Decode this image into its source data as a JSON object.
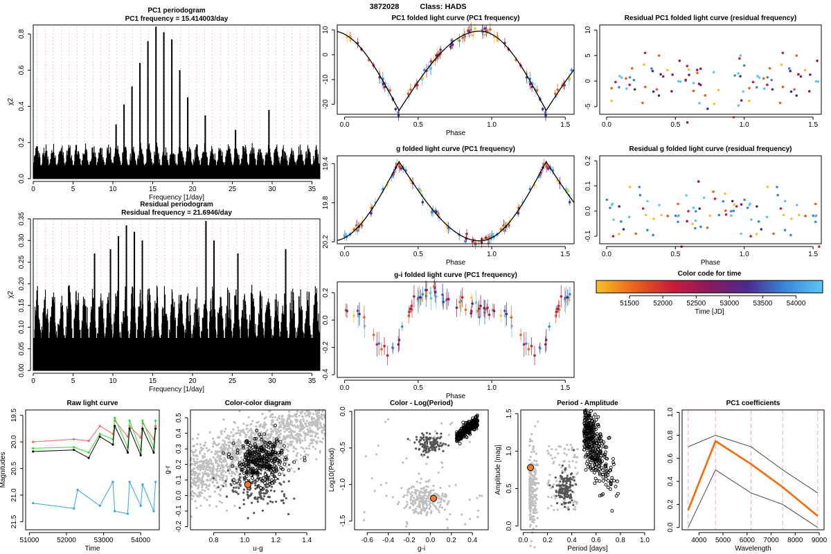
{
  "figure": {
    "object_id": "3872028",
    "class_label": "Class: HADS"
  },
  "chart_data": [
    {
      "id": "pc1_periodogram",
      "type": "line",
      "title": "PC1 periodogram",
      "subtitle": "PC1 frequency = 15.414003/day",
      "xlabel": "Frequency [1/day]",
      "ylabel": "χ2",
      "xlim": [
        0,
        36
      ],
      "ylim": [
        0,
        0.85
      ],
      "xticks": [
        0,
        5,
        10,
        15,
        20,
        25,
        30,
        35
      ],
      "yticks": [
        0.0,
        0.2,
        0.4,
        0.6,
        0.8
      ],
      "peaks": [
        {
          "x": 15.41,
          "y": 0.84
        },
        {
          "x": 16.4,
          "y": 0.81
        },
        {
          "x": 17.4,
          "y": 0.77
        },
        {
          "x": 14.4,
          "y": 0.76
        },
        {
          "x": 13.4,
          "y": 0.64
        },
        {
          "x": 18.4,
          "y": 0.6
        },
        {
          "x": 12.4,
          "y": 0.51
        },
        {
          "x": 11.4,
          "y": 0.41
        },
        {
          "x": 19.4,
          "y": 0.45
        },
        {
          "x": 21.6,
          "y": 0.35
        },
        {
          "x": 29.6,
          "y": 0.38
        },
        {
          "x": 25.4,
          "y": 0.27
        },
        {
          "x": 10.4,
          "y": 0.3
        }
      ],
      "noise_level": 0.2
    },
    {
      "id": "residual_periodogram",
      "type": "line",
      "title": "Residual periodogram",
      "subtitle": "Residual frequency = 21.6946/day",
      "xlabel": "Frequency [1/day]",
      "ylabel": "χ2",
      "xlim": [
        0,
        36
      ],
      "ylim": [
        0,
        0.35
      ],
      "xticks": [
        0,
        5,
        10,
        15,
        20,
        25,
        30,
        35
      ],
      "yticks": [
        0.0,
        0.05,
        0.1,
        0.15,
        0.2,
        0.25,
        0.3,
        0.35
      ],
      "peaks": [
        {
          "x": 21.69,
          "y": 0.345
        },
        {
          "x": 11.7,
          "y": 0.335
        },
        {
          "x": 12.7,
          "y": 0.32
        },
        {
          "x": 10.7,
          "y": 0.31
        },
        {
          "x": 13.7,
          "y": 0.3
        },
        {
          "x": 22.7,
          "y": 0.3
        },
        {
          "x": 9.7,
          "y": 0.28
        },
        {
          "x": 7.7,
          "y": 0.27
        },
        {
          "x": 31.7,
          "y": 0.28
        },
        {
          "x": 25.7,
          "y": 0.27
        }
      ],
      "noise_level": 0.2
    },
    {
      "id": "pc1_folded",
      "type": "scatter",
      "title": "PC1 folded light curve (PC1 frequency)",
      "xlabel": "Phase",
      "ylabel": "",
      "xlim": [
        -0.05,
        1.56
      ],
      "ylim": [
        -24,
        12
      ],
      "xticks": [
        0.0,
        0.5,
        1.0,
        1.5
      ],
      "yticks": [
        -20,
        -10,
        0,
        10
      ],
      "model": {
        "mean": -6,
        "amp": 16,
        "phi_min": 0.37,
        "shape": "sawtooth"
      }
    },
    {
      "id": "g_folded",
      "type": "scatter",
      "title": "g folded light curve (PC1 frequency)",
      "xlabel": "Phase",
      "ylabel": "",
      "xlim": [
        -0.05,
        1.56
      ],
      "ylim": [
        20.22,
        19.32
      ],
      "xticks": [
        0.0,
        0.5,
        1.0,
        1.5
      ],
      "yticks": [
        19.4,
        19.8,
        20.2
      ],
      "model": {
        "mean": 19.9,
        "amp": 0.4,
        "phi_peak": 0.37
      }
    },
    {
      "id": "gi_folded",
      "type": "scatter",
      "title": "g-i folded light curve (PC1 frequency)",
      "xlabel": "Phase",
      "ylabel": "",
      "xlim": [
        -0.05,
        1.56
      ],
      "ylim": [
        -0.42,
        0.28
      ],
      "xticks": [
        0.0,
        0.5,
        1.0,
        1.5
      ],
      "yticks": [
        -0.4,
        -0.2,
        0.0,
        0.2
      ]
    },
    {
      "id": "residual_pc1",
      "type": "scatter",
      "title": "Residual PC1 folded light curve (residual frequency)",
      "xlabel": "",
      "ylabel": "",
      "xlim": [
        -0.05,
        1.56
      ],
      "ylim": [
        -6.5,
        11
      ],
      "xticks": [
        0.0,
        0.5,
        1.0,
        1.5
      ],
      "yticks": [
        -5,
        0,
        5,
        10
      ]
    },
    {
      "id": "residual_g",
      "type": "scatter",
      "title": "Residual g folded light curve (residual frequency)",
      "xlabel": "Phase",
      "ylabel": "",
      "xlim": [
        -0.05,
        1.56
      ],
      "ylim": [
        -0.13,
        0.22
      ],
      "xticks": [
        0.0,
        0.5,
        1.0,
        1.5
      ],
      "yticks": [
        -0.1,
        0.0,
        0.1,
        0.2
      ]
    },
    {
      "id": "color_code",
      "type": "heatmap",
      "title": "Color code for time",
      "xlabel": "Time [JD]",
      "xlim": [
        51000,
        54400
      ],
      "xticks": [
        51500,
        52000,
        52500,
        53000,
        53500,
        54000
      ],
      "colors": [
        "#f7c12a",
        "#e8631c",
        "#c81d39",
        "#8a1a5e",
        "#4a2a8c",
        "#3a86d8",
        "#5dc6f3"
      ]
    },
    {
      "id": "raw_lc",
      "type": "line",
      "title": "Raw light curve",
      "xlabel": "Time",
      "ylabel": "Magnitudes",
      "xlim": [
        50900,
        54500
      ],
      "ylim": [
        21.65,
        19.4
      ],
      "xticks": [
        51000,
        52000,
        53000,
        54000
      ],
      "yticks": [
        19.5,
        20.0,
        20.5,
        21.0,
        21.5
      ],
      "series": [
        {
          "color": "#ff6060",
          "t": [
            51100,
            52200,
            52600,
            52900,
            53250,
            53300,
            53650,
            53700,
            54000,
            54050,
            54350,
            54400
          ],
          "m": [
            20.0,
            19.95,
            19.98,
            19.7,
            19.85,
            19.6,
            19.9,
            19.7,
            19.92,
            19.65,
            19.95,
            19.7
          ]
        },
        {
          "color": "#33dd33",
          "t": [
            51100,
            52200,
            52600,
            52900,
            53250,
            53300,
            53650,
            53700,
            54000,
            54050,
            54350,
            54400
          ],
          "m": [
            20.12,
            20.1,
            20.2,
            19.85,
            19.95,
            19.55,
            20.1,
            19.6,
            20.15,
            19.6,
            20.1,
            19.6
          ]
        },
        {
          "color": "#000000",
          "t": [
            51100,
            52200,
            52600,
            52900,
            53250,
            53300,
            53650,
            53700,
            54000,
            54050,
            54350,
            54400
          ],
          "m": [
            20.18,
            20.15,
            20.3,
            19.9,
            20.05,
            19.7,
            20.2,
            19.75,
            20.25,
            19.75,
            20.2,
            19.75
          ]
        },
        {
          "color": "#2aa8e8",
          "t": [
            51100,
            52200,
            52300,
            52900,
            53250,
            53300,
            53650,
            53700,
            54000,
            54050,
            54350,
            54400
          ],
          "m": [
            21.15,
            21.25,
            20.9,
            21.2,
            20.75,
            21.3,
            21.35,
            20.75,
            21.2,
            20.8,
            21.3,
            20.75
          ]
        }
      ]
    },
    {
      "id": "color_color",
      "type": "scatter",
      "title": "Color-color diagram",
      "xlabel": "u-g",
      "ylabel": "g-r",
      "xlim": [
        0.65,
        1.52
      ],
      "ylim": [
        -0.22,
        0.55
      ],
      "xticks": [
        0.8,
        1.0,
        1.2,
        1.4
      ],
      "yticks": [
        -0.2,
        -0.1,
        0.0,
        0.1,
        0.2,
        0.3,
        0.4,
        0.5
      ],
      "highlight": {
        "x": 1.02,
        "y": 0.07
      }
    },
    {
      "id": "color_logp",
      "type": "scatter",
      "title": "Color - Log(Period)",
      "xlabel": "g-i",
      "ylabel": "Log10(Period)",
      "xlim": [
        -0.72,
        0.55
      ],
      "ylim": [
        -1.62,
        0.02
      ],
      "xticks": [
        -0.6,
        -0.4,
        -0.2,
        0.0,
        0.2,
        0.4
      ],
      "yticks": [
        -1.5,
        -1.0,
        -0.5,
        0.0
      ],
      "highlight": {
        "x": 0.03,
        "y": -1.19
      }
    },
    {
      "id": "period_amp",
      "type": "scatter",
      "title": "Period - Amplitude",
      "xlabel": "Period [days]",
      "ylabel": "Amplitude [mag]",
      "xlim": [
        -0.02,
        1.08
      ],
      "ylim": [
        -0.05,
        1.55
      ],
      "xticks": [
        0.0,
        0.2,
        0.4,
        0.6,
        0.8,
        1.0
      ],
      "yticks": [
        0.0,
        0.5,
        1.0,
        1.5
      ],
      "highlight": {
        "x": 0.06,
        "y": 0.78
      }
    },
    {
      "id": "pc1_coeffs",
      "type": "line",
      "title": "PC1 coefficients",
      "xlabel": "Wavelength",
      "ylabel": "",
      "xlim": [
        3300,
        9200
      ],
      "ylim": [
        -0.02,
        1.02
      ],
      "xticks": [
        4000,
        5000,
        6000,
        7000,
        8000,
        9000
      ],
      "yticks": [
        0.0,
        0.2,
        0.4,
        0.6,
        0.8,
        1.0
      ],
      "x": [
        3551,
        4686,
        6166,
        7480,
        8932
      ],
      "series": [
        {
          "color": "#444444",
          "values": [
            0.7,
            0.8,
            0.7,
            0.5,
            0.3
          ]
        },
        {
          "color": "#444444",
          "values": [
            0.0,
            0.5,
            0.3,
            0.2,
            0.0
          ]
        },
        {
          "color": "#ff6600",
          "values": [
            0.15,
            0.75,
            0.55,
            0.35,
            0.1
          ]
        }
      ],
      "bands": [
        3551,
        4686,
        6166,
        7480,
        8932
      ]
    }
  ]
}
